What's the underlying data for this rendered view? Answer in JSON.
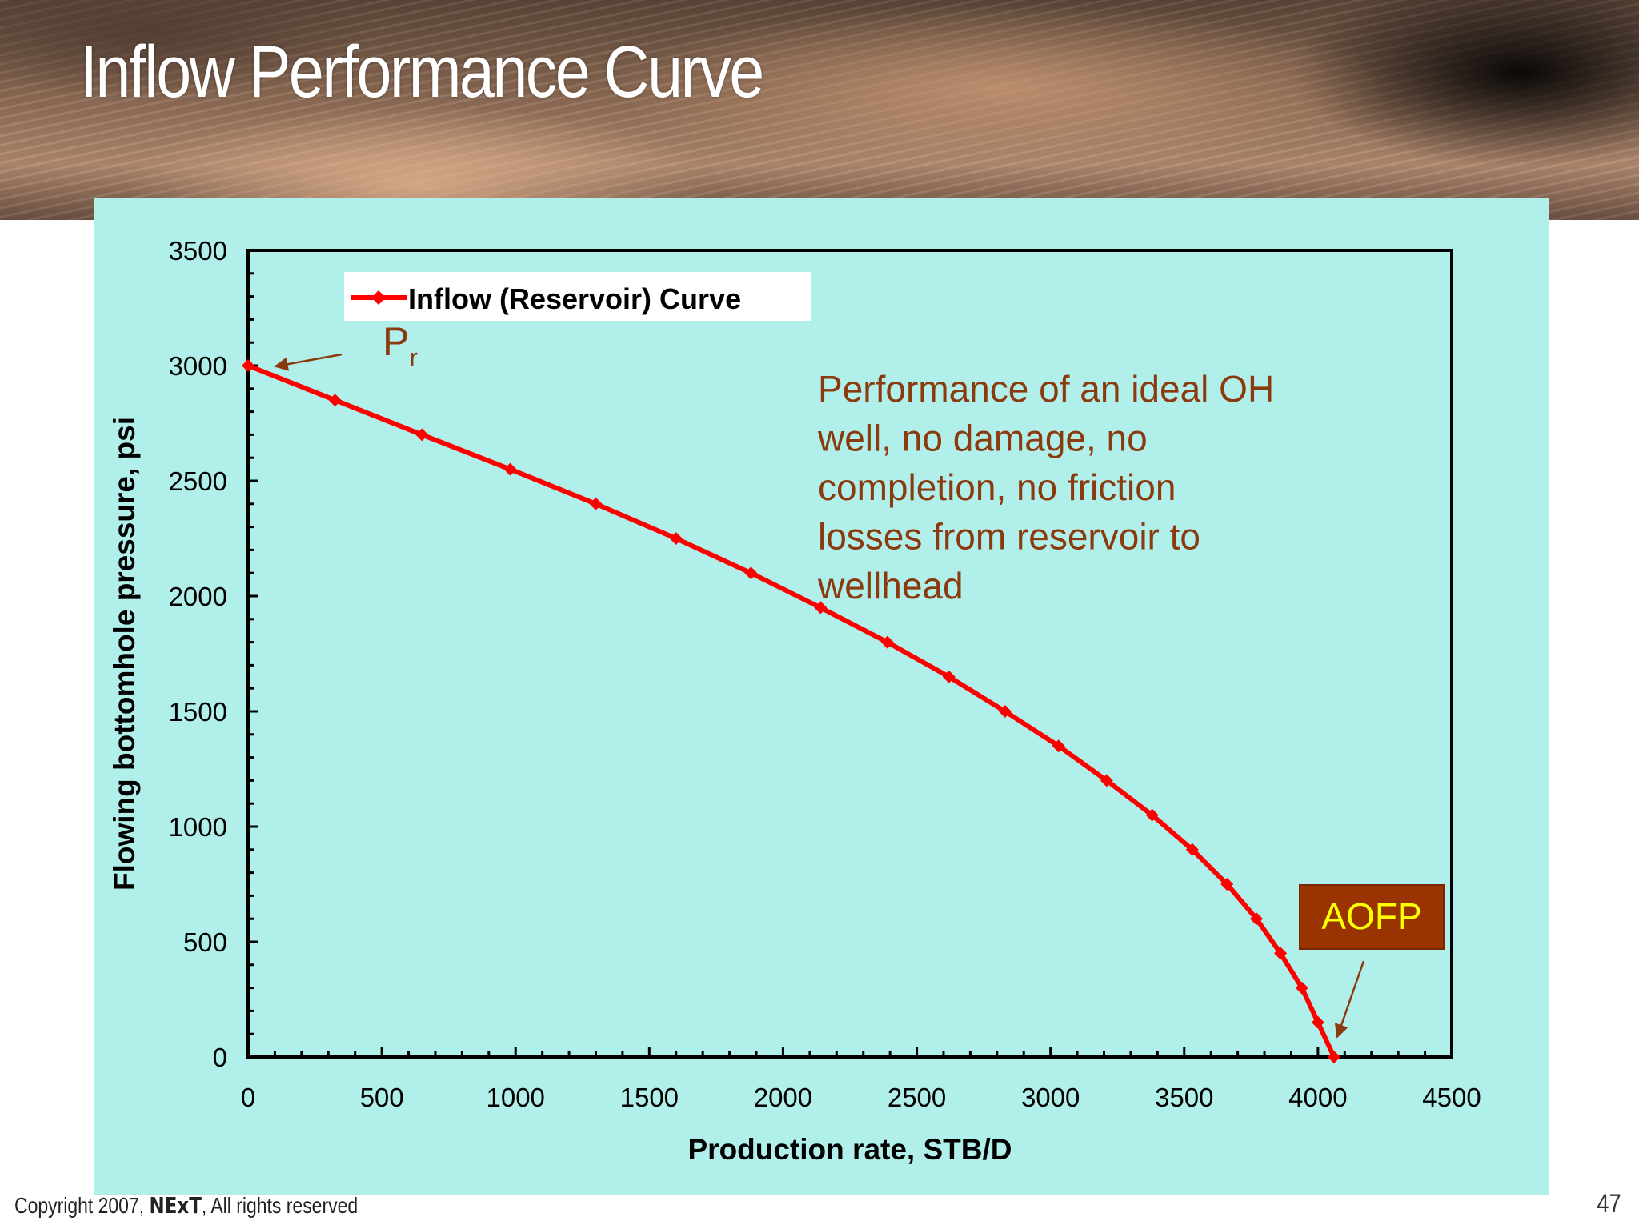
{
  "slide": {
    "title": "Inflow Performance Curve",
    "footer_prefix": "Copyright 2007, ",
    "footer_brand": "NExT",
    "footer_suffix": ", All rights reserved",
    "page_number": "47"
  },
  "colors": {
    "panel_background": "#b0efea",
    "series": "#ff0000",
    "annotation_text": "#8b3a0e",
    "aofp_box": "#993300",
    "aofp_text": "#ffff00"
  },
  "chart_data": {
    "type": "line",
    "xlabel": "Production rate, STB/D",
    "ylabel": "Flowing bottomhole pressure, psi",
    "xlim": [
      0,
      4500
    ],
    "ylim": [
      0,
      3500
    ],
    "xticks": [
      0,
      500,
      1000,
      1500,
      2000,
      2500,
      3000,
      3500,
      4000,
      4500
    ],
    "yticks": [
      0,
      500,
      1000,
      1500,
      2000,
      2500,
      3000,
      3500
    ],
    "legend": "top-left",
    "grid": false,
    "series": [
      {
        "name": "Inflow (Reservoir) Curve",
        "marker": "diamond",
        "x": [
          0,
          325,
          650,
          980,
          1300,
          1600,
          1880,
          2140,
          2390,
          2620,
          2830,
          3030,
          3210,
          3380,
          3530,
          3660,
          3770,
          3860,
          3940,
          4000,
          4060
        ],
        "y": [
          3000,
          2850,
          2700,
          2550,
          2400,
          2250,
          2100,
          1950,
          1800,
          1650,
          1500,
          1350,
          1200,
          1050,
          900,
          750,
          600,
          450,
          300,
          150,
          0
        ]
      }
    ],
    "annotations": {
      "pr_main": "P",
      "pr_sub": "r",
      "description": [
        "Performance of an ideal OH",
        "well, no damage, no",
        "completion, no friction",
        "losses from reservoir to",
        "wellhead"
      ],
      "aofp": "AOFP"
    }
  }
}
